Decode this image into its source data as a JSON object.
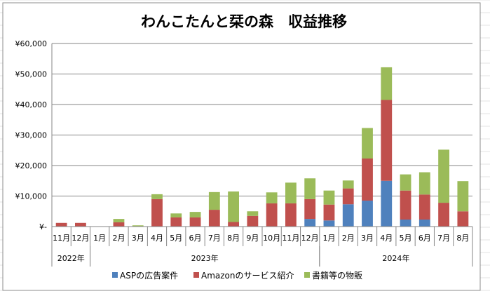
{
  "chart_data": {
    "type": "bar",
    "stacked": true,
    "title": "わんこたんと栞の森　収益推移",
    "xlabel": "",
    "ylabel": "",
    "ylim": [
      0,
      60000
    ],
    "yticks": [
      0,
      10000,
      20000,
      30000,
      40000,
      50000,
      60000
    ],
    "ytick_labels": [
      "¥-",
      "¥10,000",
      "¥20,000",
      "¥30,000",
      "¥40,000",
      "¥50,000",
      "¥60,000"
    ],
    "grid": true,
    "legend_position": "bottom",
    "categories": [
      "11月",
      "12月",
      "1月",
      "2月",
      "3月",
      "4月",
      "5月",
      "6月",
      "7月",
      "8月",
      "9月",
      "10月",
      "11月",
      "12月",
      "1月",
      "2月",
      "3月",
      "4月",
      "5月",
      "6月",
      "7月",
      "8月"
    ],
    "year_groups": [
      {
        "label": "2022年",
        "start": 0,
        "count": 2
      },
      {
        "label": "2023年",
        "start": 2,
        "count": 12
      },
      {
        "label": "2024年",
        "start": 14,
        "count": 8
      }
    ],
    "series": [
      {
        "name": "ASPの広告案件",
        "color": "#4f81bd",
        "values": [
          0,
          0,
          0,
          0,
          0,
          0,
          0,
          0,
          0,
          0,
          0,
          0,
          0,
          2500,
          2000,
          7300,
          8500,
          15000,
          2300,
          2300,
          0,
          0
        ]
      },
      {
        "name": "Amazonのサービス紹介",
        "color": "#c0504d",
        "values": [
          1200,
          1200,
          0,
          1400,
          0,
          9000,
          3000,
          3000,
          5500,
          1500,
          3500,
          7600,
          7600,
          6500,
          5200,
          5200,
          13800,
          26500,
          9500,
          8200,
          7800,
          5000
        ]
      },
      {
        "name": "書籍等の物販",
        "color": "#9bbb59",
        "values": [
          0,
          0,
          0,
          1100,
          400,
          1600,
          1300,
          1800,
          5800,
          10000,
          1500,
          3600,
          6800,
          6800,
          4600,
          2600,
          10000,
          10700,
          5300,
          7300,
          17400,
          9900
        ]
      }
    ]
  }
}
